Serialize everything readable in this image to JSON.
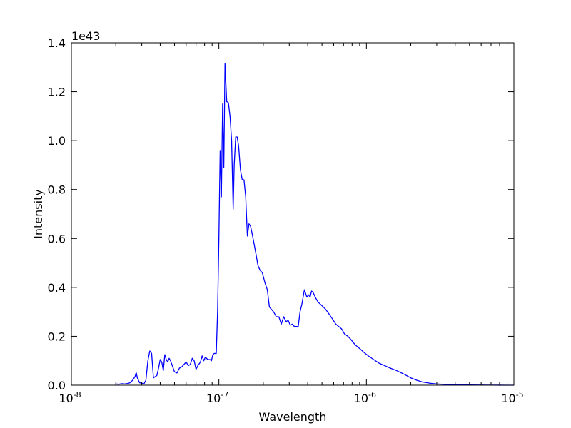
{
  "chart_data": {
    "type": "line",
    "title": "",
    "xlabel": "Wavelength",
    "ylabel": "Intensity",
    "y_offset_label": "1e43",
    "x_scale": "log",
    "xlim": [
      1e-08,
      1e-05
    ],
    "ylim": [
      0,
      1.4
    ],
    "y_multiplier": 1e+43,
    "grid": false,
    "x_ticks": [
      {
        "value": 1e-08,
        "base": "10",
        "exp": "-8"
      },
      {
        "value": 1e-07,
        "base": "10",
        "exp": "-7"
      },
      {
        "value": 1e-06,
        "base": "10",
        "exp": "-6"
      },
      {
        "value": 1e-05,
        "base": "10",
        "exp": "-5"
      }
    ],
    "y_ticks": [
      "0.0",
      "0.2",
      "0.4",
      "0.6",
      "0.8",
      "1.0",
      "1.2",
      "1.4"
    ],
    "series": [
      {
        "color": "#0000ff",
        "x": [
          2e-08,
          2.1e-08,
          2.2e-08,
          2.3e-08,
          2.4e-08,
          2.5e-08,
          2.6e-08,
          2.7e-08,
          2.75e-08,
          2.8e-08,
          2.9e-08,
          3e-08,
          3.1e-08,
          3.2e-08,
          3.3e-08,
          3.4e-08,
          3.5e-08,
          3.6e-08,
          3.8e-08,
          3.9e-08,
          4e-08,
          4.1e-08,
          4.2e-08,
          4.3e-08,
          4.4e-08,
          4.5e-08,
          4.6e-08,
          4.7e-08,
          4.8e-08,
          5e-08,
          5.2e-08,
          5.4e-08,
          5.6e-08,
          5.8e-08,
          6e-08,
          6.2e-08,
          6.4e-08,
          6.6e-08,
          6.8e-08,
          7e-08,
          7.2e-08,
          7.5e-08,
          7.7e-08,
          7.9e-08,
          8.1e-08,
          8.4e-08,
          8.7e-08,
          8.9e-08,
          9.1e-08,
          9.3e-08,
          9.6e-08,
          9.8e-08,
          1e-07,
          1.02e-07,
          1.04e-07,
          1.06e-07,
          1.08e-07,
          1.1e-07,
          1.13e-07,
          1.16e-07,
          1.19e-07,
          1.22e-07,
          1.25e-07,
          1.27e-07,
          1.3e-07,
          1.33e-07,
          1.36e-07,
          1.4e-07,
          1.44e-07,
          1.48e-07,
          1.52e-07,
          1.56e-07,
          1.6e-07,
          1.64e-07,
          1.68e-07,
          1.73e-07,
          1.78e-07,
          1.84e-07,
          1.9e-07,
          1.97e-07,
          2.05e-07,
          2.13e-07,
          2.2e-07,
          2.27e-07,
          2.35e-07,
          2.45e-07,
          2.55e-07,
          2.65e-07,
          2.75e-07,
          2.85e-07,
          2.95e-07,
          3.05e-07,
          3.15e-07,
          3.25e-07,
          3.35e-07,
          3.45e-07,
          3.55e-07,
          3.65e-07,
          3.8e-07,
          3.95e-07,
          4.05e-07,
          4.15e-07,
          4.25e-07,
          4.35e-07,
          4.5e-07,
          4.7e-07,
          4.9e-07,
          5.1e-07,
          5.3e-07,
          5.6e-07,
          5.9e-07,
          6.2e-07,
          6.5e-07,
          6.8e-07,
          7.1e-07,
          7.5e-07,
          7.9e-07,
          8.4e-07,
          9e-07,
          9.6e-07,
          1.03e-06,
          1.12e-06,
          1.22e-06,
          1.33e-06,
          1.45e-06,
          1.6e-06,
          1.8e-06,
          2e-06,
          2.2e-06,
          2.4e-06,
          2.7e-06,
          3e-06,
          3.5e-06,
          4e-06,
          5e-06,
          6e-06,
          7e-06,
          8e-06,
          9e-06,
          1e-05
        ],
        "y": [
          0.005,
          0.004,
          0.006,
          0.005,
          0.007,
          0.01,
          0.02,
          0.035,
          0.052,
          0.03,
          0.01,
          0.008,
          0.005,
          0.02,
          0.1,
          0.14,
          0.13,
          0.03,
          0.04,
          0.07,
          0.105,
          0.095,
          0.06,
          0.125,
          0.105,
          0.095,
          0.11,
          0.1,
          0.085,
          0.055,
          0.05,
          0.07,
          0.075,
          0.085,
          0.095,
          0.08,
          0.085,
          0.11,
          0.1,
          0.065,
          0.08,
          0.095,
          0.12,
          0.1,
          0.115,
          0.105,
          0.105,
          0.1,
          0.125,
          0.13,
          0.13,
          0.3,
          0.6,
          0.96,
          0.77,
          1.15,
          0.89,
          1.315,
          1.16,
          1.155,
          1.1,
          1.0,
          0.72,
          0.9,
          1.015,
          1.015,
          0.98,
          0.88,
          0.84,
          0.84,
          0.77,
          0.61,
          0.66,
          0.65,
          0.62,
          0.58,
          0.54,
          0.49,
          0.47,
          0.46,
          0.42,
          0.39,
          0.32,
          0.31,
          0.3,
          0.28,
          0.28,
          0.25,
          0.28,
          0.26,
          0.265,
          0.245,
          0.25,
          0.24,
          0.24,
          0.24,
          0.3,
          0.33,
          0.39,
          0.36,
          0.37,
          0.36,
          0.385,
          0.38,
          0.36,
          0.34,
          0.33,
          0.32,
          0.31,
          0.29,
          0.27,
          0.25,
          0.24,
          0.23,
          0.21,
          0.2,
          0.185,
          0.165,
          0.15,
          0.135,
          0.12,
          0.105,
          0.09,
          0.08,
          0.07,
          0.06,
          0.045,
          0.03,
          0.02,
          0.013,
          0.008,
          0.005,
          0.003,
          0.002,
          0.001,
          0.0005,
          0.0003,
          0.0002,
          0.0001,
          0.0001
        ]
      }
    ]
  }
}
